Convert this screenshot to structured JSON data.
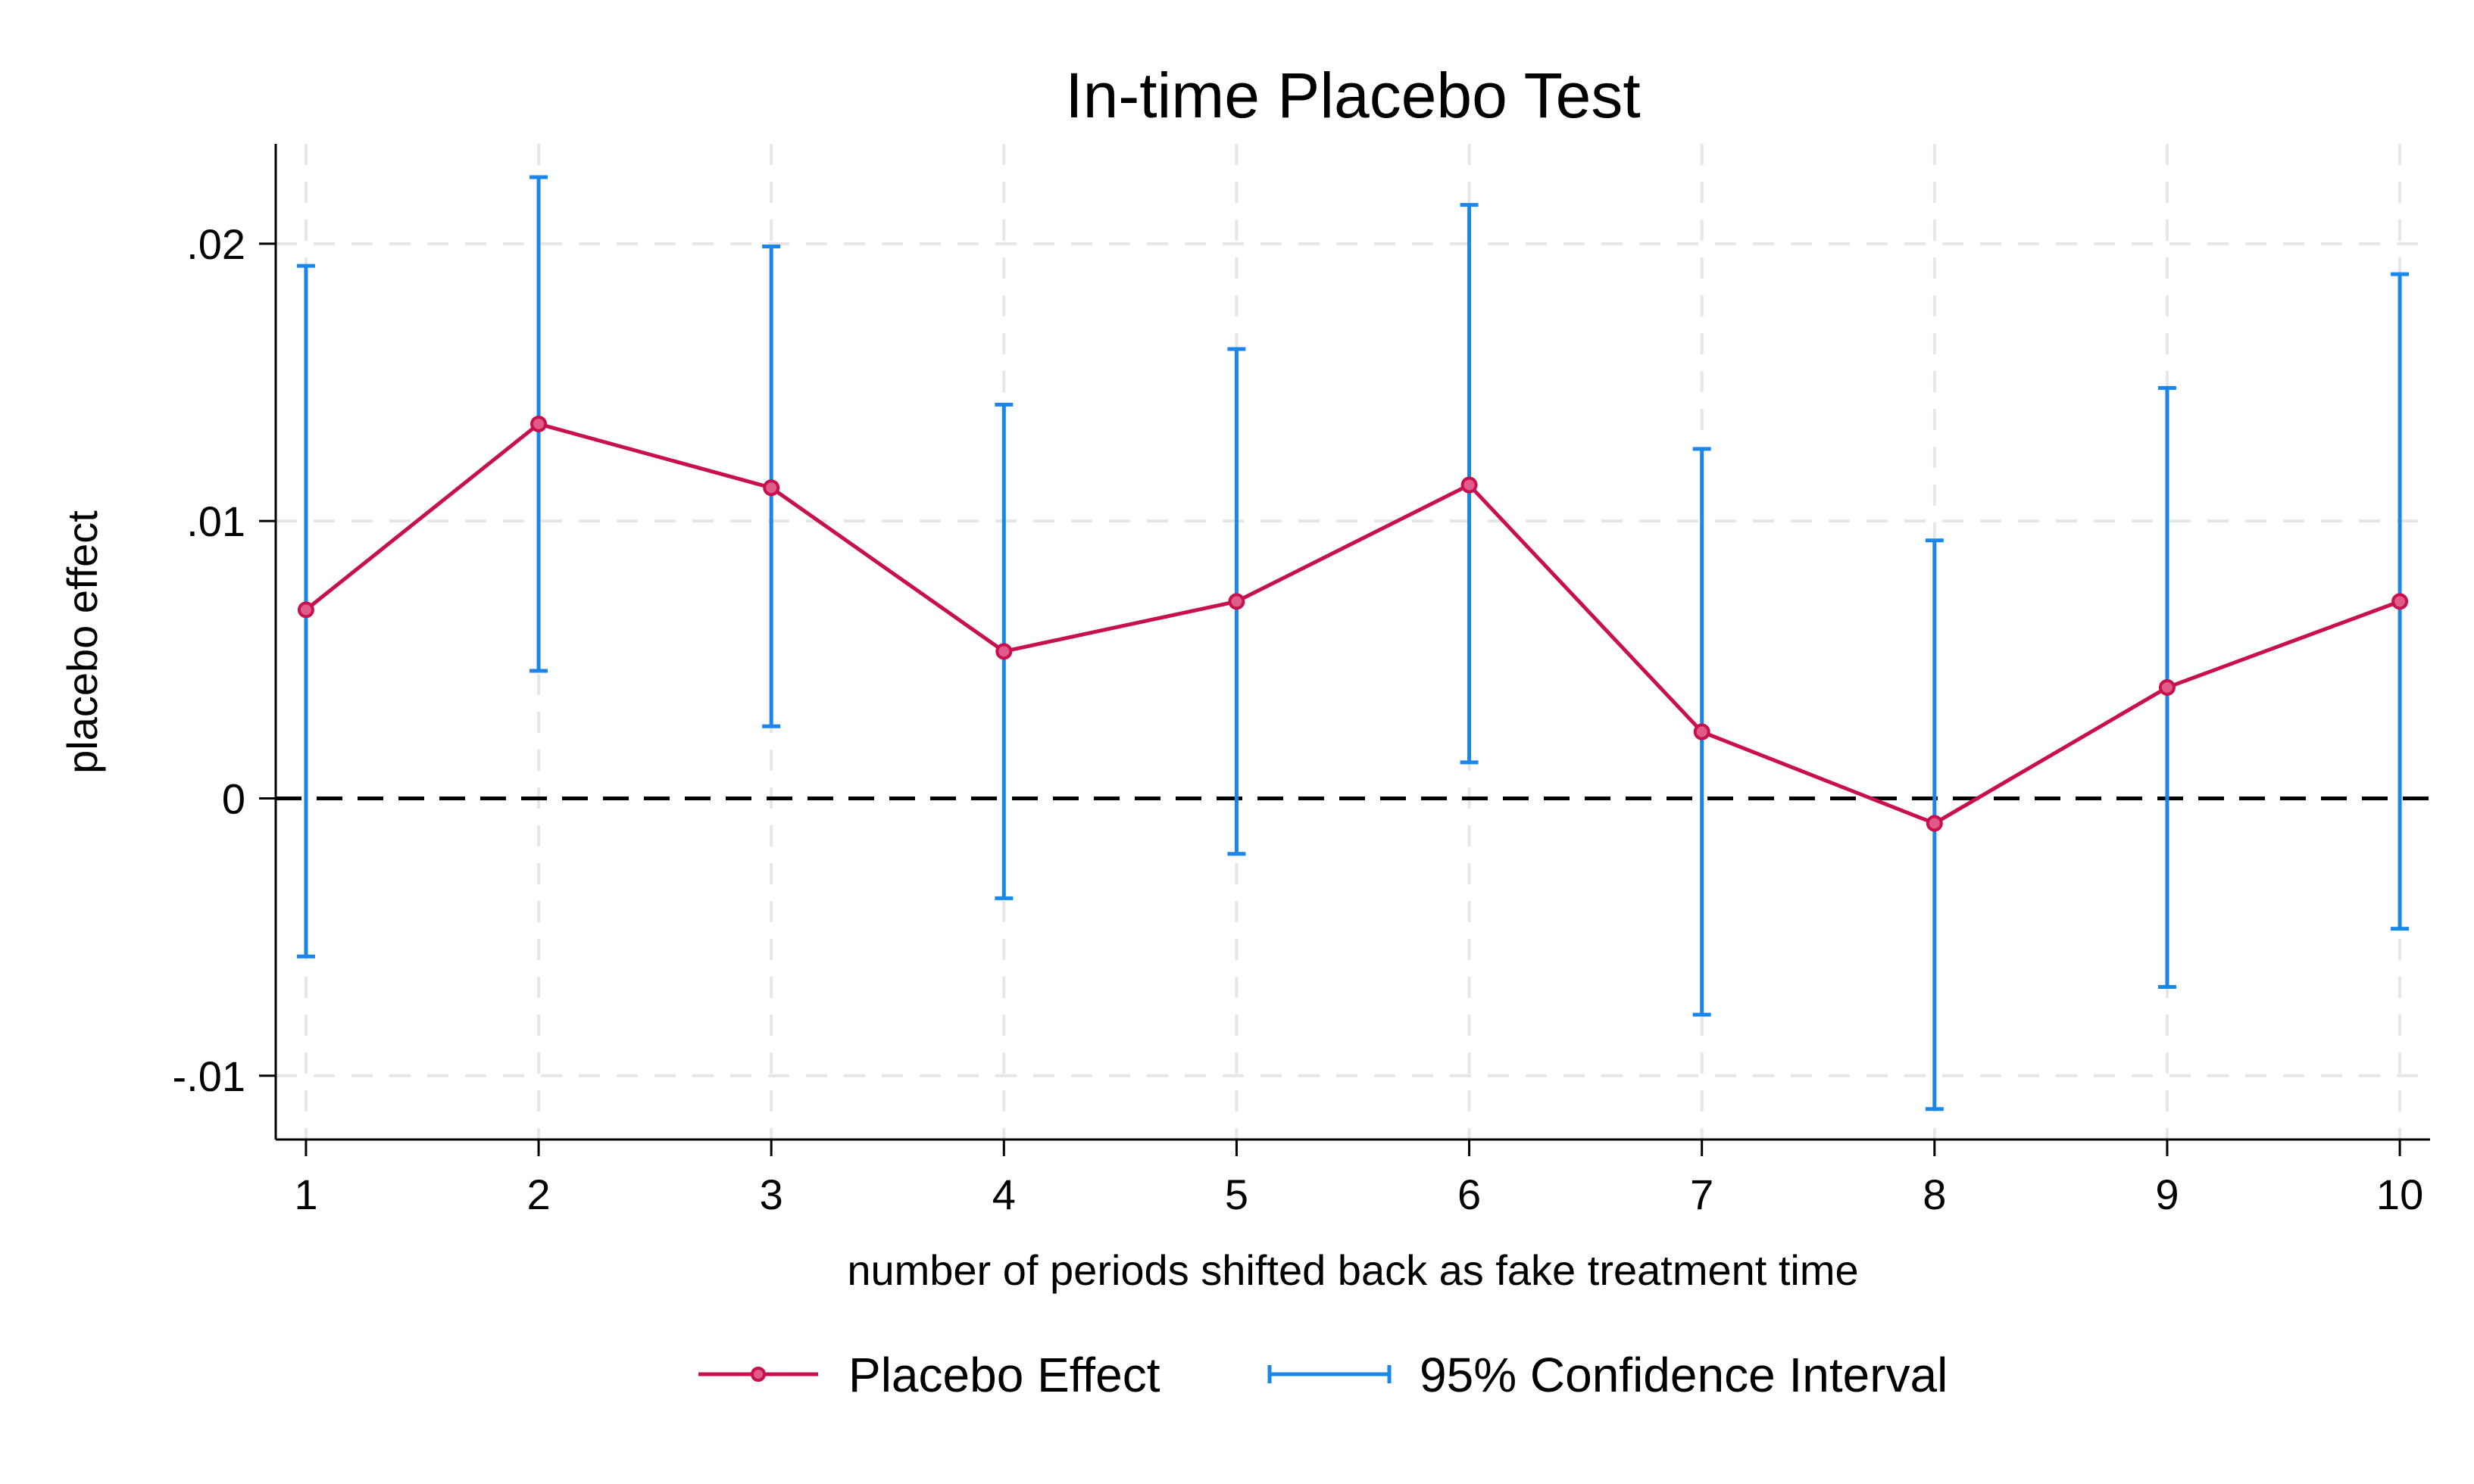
{
  "chart_data": {
    "type": "line",
    "title": "In-time Placebo Test",
    "xlabel": "number of periods shifted back as fake treatment time",
    "ylabel": "placebo effect",
    "x": [
      1,
      2,
      3,
      4,
      5,
      6,
      7,
      8,
      9,
      10
    ],
    "xlim": [
      0.87,
      10.13
    ],
    "ylim": [
      -0.0123,
      0.0236
    ],
    "x_ticks": [
      1,
      2,
      3,
      4,
      5,
      6,
      7,
      8,
      9,
      10
    ],
    "x_tick_labels": [
      "1",
      "2",
      "3",
      "4",
      "5",
      "6",
      "7",
      "8",
      "9",
      "10"
    ],
    "y_ticks": [
      -0.01,
      0,
      0.01,
      0.02
    ],
    "y_tick_labels": [
      "-.01",
      "0",
      ".01",
      ".02"
    ],
    "grid": true,
    "reference_line": {
      "y": 0,
      "style": "dashed",
      "color": "#000000"
    },
    "series": [
      {
        "name": "Placebo Effect",
        "kind": "line-marker",
        "color": "#c8104f",
        "values": [
          0.0068,
          0.0135,
          0.0112,
          0.0053,
          0.0071,
          0.0113,
          0.0024,
          -0.0009,
          0.004,
          0.0071
        ]
      },
      {
        "name": "95% Confidence Interval",
        "kind": "errorbar",
        "color": "#1a86ea",
        "lower": [
          -0.0057,
          0.0046,
          0.0026,
          -0.0036,
          -0.002,
          0.0013,
          -0.0078,
          -0.0112,
          -0.0068,
          -0.0047
        ],
        "upper": [
          0.0192,
          0.0224,
          0.0199,
          0.0142,
          0.0162,
          0.0214,
          0.0126,
          0.0093,
          0.0148,
          0.0189
        ]
      }
    ],
    "legend": {
      "position": "bottom",
      "orientation": "horizontal"
    }
  }
}
